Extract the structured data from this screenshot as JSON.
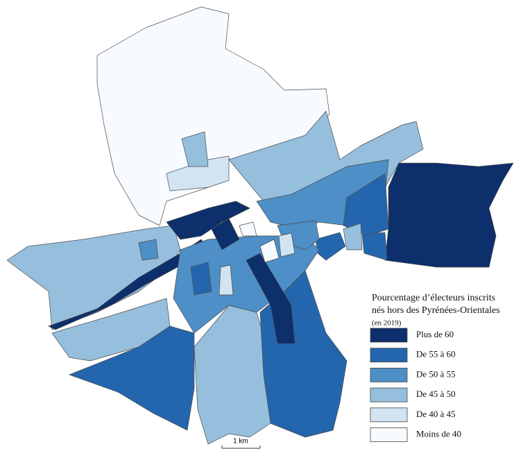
{
  "legend": {
    "title_lines": [
      "Pourcentage d’électeurs inscrits",
      "nés hors des Pyrénées-Orientales",
      "(en 2019)"
    ],
    "items": [
      {
        "label": "Plus de 60",
        "color": "#0d2f6b"
      },
      {
        "label": "De 55 à 60",
        "color": "#2466ad"
      },
      {
        "label": "De 50 à 55",
        "color": "#4d8fc6"
      },
      {
        "label": "De 45 à 50",
        "color": "#95bfdd"
      },
      {
        "label": "De 40 à 45",
        "color": "#d2e3f2"
      },
      {
        "label": "Moins de 40",
        "color": "#f7fbff"
      }
    ]
  },
  "scale_bar": {
    "label": "1 km"
  }
}
